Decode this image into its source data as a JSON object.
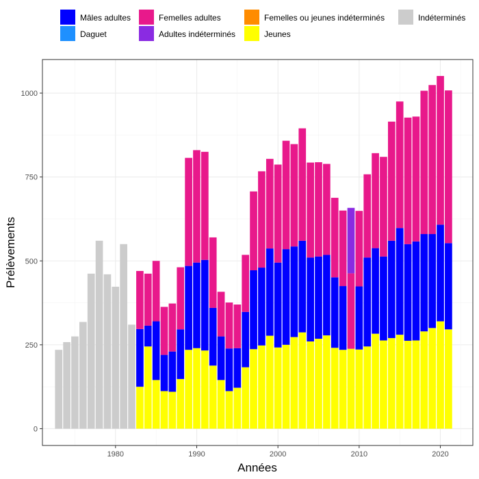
{
  "chart_data": {
    "type": "bar",
    "stacked": true,
    "title": "",
    "xlabel": "Années",
    "ylabel": "Prélèvements",
    "xlim": [
      1971,
      2024
    ],
    "ylim": [
      -50,
      1100
    ],
    "x_ticks": [
      1980,
      1990,
      2000,
      2010,
      2020
    ],
    "y_ticks": [
      0,
      250,
      500,
      750,
      1000
    ],
    "grid": true,
    "legend_position": "top",
    "series_order": [
      "Jeunes",
      "Mâles adultes",
      "Femelles adultes",
      "Adultes indéterminés",
      "Indéterminés"
    ],
    "legend": [
      {
        "name": "Mâles adultes",
        "color": "#0000ff"
      },
      {
        "name": "Femelles adultes",
        "color": "#e8198b"
      },
      {
        "name": "Femelles ou jeunes indéterminés",
        "color": "#ff8c00"
      },
      {
        "name": "Indéterminés",
        "color": "#cccccc"
      },
      {
        "name": "Daguet",
        "color": "#1e90ff"
      },
      {
        "name": "Adultes indéterminés",
        "color": "#8a2be2"
      },
      {
        "name": "Jeunes",
        "color": "#ffff00"
      }
    ],
    "x": [
      1973,
      1974,
      1975,
      1976,
      1977,
      1978,
      1979,
      1980,
      1981,
      1982,
      1983,
      1984,
      1985,
      1986,
      1987,
      1988,
      1989,
      1990,
      1991,
      1992,
      1993,
      1994,
      1995,
      1996,
      1997,
      1998,
      1999,
      2000,
      2001,
      2002,
      2003,
      2004,
      2005,
      2006,
      2007,
      2008,
      2009,
      2010,
      2011,
      2012,
      2013,
      2014,
      2015,
      2016,
      2017,
      2018,
      2019,
      2020,
      2021
    ],
    "series": [
      {
        "name": "Jeunes",
        "values": [
          0,
          0,
          0,
          0,
          0,
          0,
          0,
          0,
          0,
          0,
          125,
          245,
          145,
          112,
          110,
          148,
          235,
          240,
          233,
          188,
          145,
          112,
          122,
          183,
          237,
          248,
          277,
          242,
          250,
          273,
          287,
          260,
          268,
          278,
          241,
          235,
          238,
          236,
          245,
          283,
          263,
          270,
          280,
          262,
          263,
          290,
          300,
          320,
          296
        ]
      },
      {
        "name": "Mâles adultes",
        "values": [
          0,
          0,
          0,
          0,
          0,
          0,
          0,
          0,
          0,
          0,
          172,
          62,
          175,
          108,
          120,
          148,
          250,
          255,
          270,
          172,
          130,
          127,
          118,
          165,
          235,
          232,
          260,
          253,
          285,
          270,
          273,
          250,
          245,
          240,
          210,
          190,
          0,
          188,
          265,
          255,
          250,
          290,
          318,
          288,
          295,
          290,
          280,
          288,
          257
        ]
      },
      {
        "name": "Femelles adultes",
        "values": [
          0,
          0,
          0,
          0,
          0,
          0,
          0,
          0,
          0,
          0,
          173,
          155,
          180,
          143,
          143,
          185,
          322,
          335,
          322,
          210,
          133,
          137,
          130,
          170,
          235,
          287,
          267,
          292,
          323,
          305,
          335,
          283,
          281,
          271,
          237,
          225,
          225,
          225,
          248,
          283,
          297,
          355,
          377,
          377,
          372,
          427,
          444,
          443,
          455
        ]
      },
      {
        "name": "Adultes indéterminés",
        "values": [
          0,
          0,
          0,
          0,
          0,
          0,
          0,
          0,
          0,
          0,
          0,
          0,
          0,
          0,
          0,
          0,
          0,
          0,
          0,
          0,
          0,
          0,
          0,
          0,
          0,
          0,
          0,
          0,
          0,
          0,
          0,
          0,
          0,
          0,
          0,
          0,
          195,
          0,
          0,
          0,
          0,
          0,
          0,
          0,
          0,
          0,
          0,
          0,
          0
        ]
      },
      {
        "name": "Indéterminés",
        "values": [
          235,
          258,
          275,
          318,
          462,
          560,
          460,
          423,
          550,
          310,
          0,
          0,
          0,
          0,
          0,
          0,
          0,
          0,
          0,
          0,
          0,
          0,
          0,
          0,
          0,
          0,
          0,
          0,
          0,
          0,
          0,
          0,
          0,
          0,
          0,
          0,
          0,
          0,
          0,
          0,
          0,
          0,
          0,
          0,
          0,
          0,
          0,
          0,
          0
        ]
      }
    ]
  }
}
